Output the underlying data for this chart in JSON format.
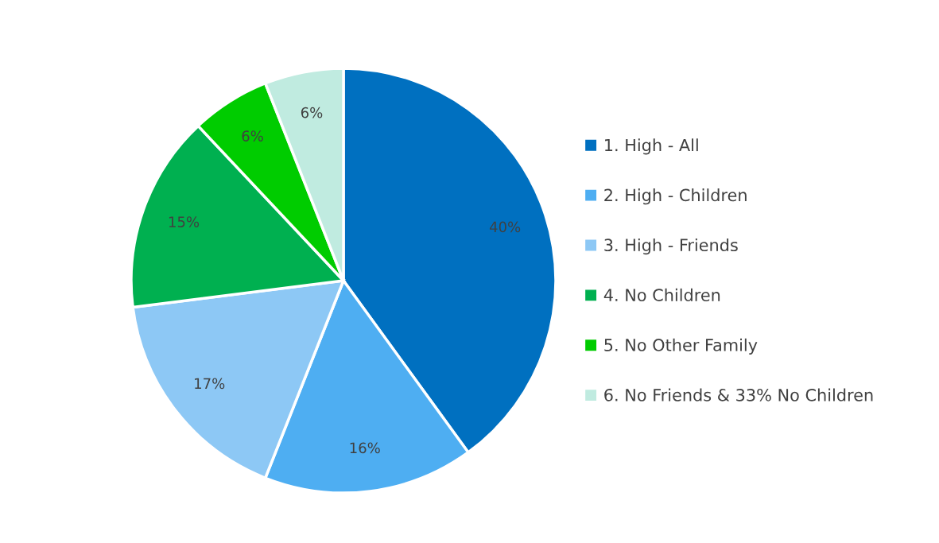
{
  "chart_data": {
    "type": "pie",
    "categories": [
      "1. High - All",
      "2. High - Children",
      "3. High - Friends",
      "4. No Children",
      "5. No Other Family",
      "6. No Friends & 33% No Children"
    ],
    "values": [
      40,
      16,
      17,
      15,
      6,
      6
    ],
    "colors": [
      "#0070c0",
      "#4eaef2",
      "#8dc8f5",
      "#00b050",
      "#00cc00",
      "#c0ebe0"
    ],
    "value_labels": [
      "40%",
      "16%",
      "17%",
      "15%",
      "6%",
      "6%"
    ],
    "legend": "right"
  }
}
